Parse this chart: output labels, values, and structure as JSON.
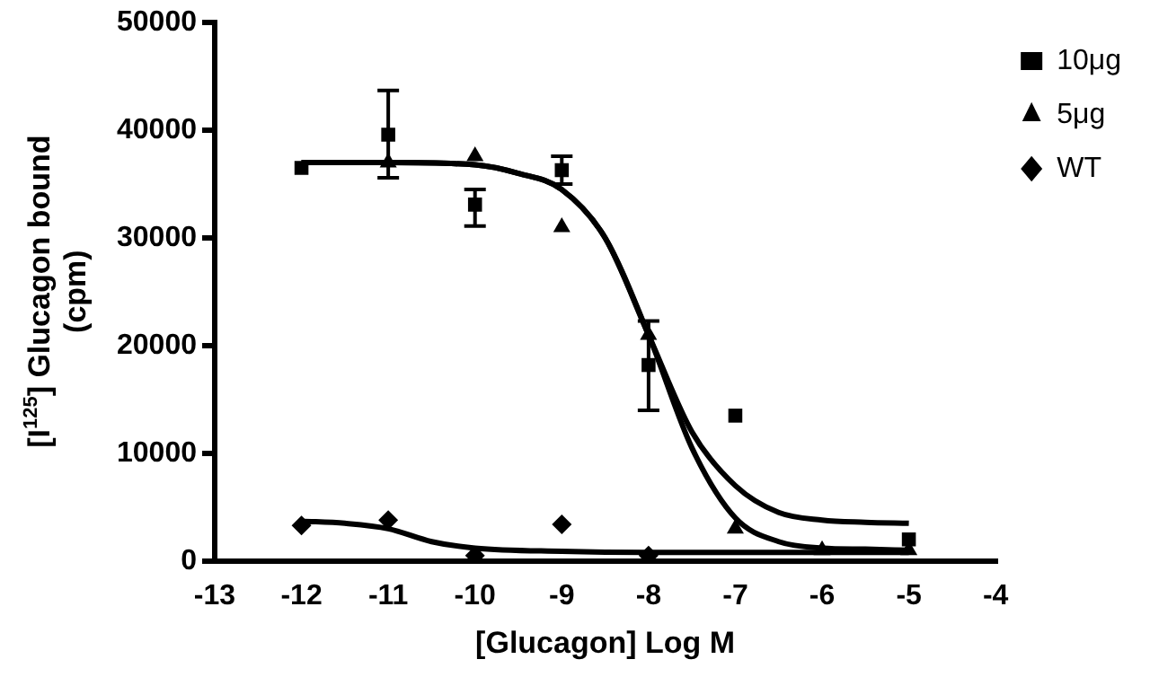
{
  "chart_data": {
    "type": "scatter",
    "xlabel": "[Glucagon] Log M",
    "ylabel": "[I$^{125}$] Glucagon bound (cpm)",
    "xlim": [
      -13,
      -4
    ],
    "xticks": [
      -13,
      -12,
      -11,
      -10,
      -9,
      -8,
      -7,
      -6,
      -5,
      -4
    ],
    "ylim": [
      0,
      50000
    ],
    "yticks": [
      0,
      10000,
      20000,
      30000,
      40000,
      50000
    ],
    "grid": false,
    "legend": "top right",
    "series": [
      {
        "name": "10μg",
        "type": "scatter",
        "marker": "square",
        "color": "#000000",
        "x": [
          -12,
          -11,
          -10,
          -9,
          -8,
          -7,
          -6,
          -5
        ],
        "values": [
          36500,
          39600,
          33100,
          36300,
          18200,
          13500,
          null,
          2000
        ],
        "errors": [
          null,
          [
            35600,
            43700
          ],
          [
            31100,
            34500
          ],
          [
            35000,
            37600
          ],
          [
            14000,
            22300
          ],
          null,
          null,
          null
        ]
      },
      {
        "name": "5μg",
        "type": "scatter",
        "marker": "triangle",
        "color": "#000000",
        "x": [
          -11,
          -10,
          -9,
          -8,
          -7,
          -6,
          -5
        ],
        "values": [
          37000,
          37600,
          31000,
          21000,
          3000,
          1000,
          1000
        ]
      },
      {
        "name": "WT",
        "type": "scatter",
        "marker": "diamond",
        "color": "#000000",
        "x": [
          -12,
          -11,
          -10,
          -9,
          -8
        ],
        "values": [
          3300,
          3800,
          500,
          3400,
          500
        ]
      },
      {
        "type": "line",
        "color": "#000000",
        "x": [
          -12,
          -11,
          -10,
          -9.5,
          -9,
          -8.5,
          -8,
          -7.5,
          -7,
          -6.5,
          -6,
          -5.5,
          -5
        ],
        "values": [
          37000,
          37000,
          36800,
          36000,
          34500,
          30000,
          21000,
          12000,
          7000,
          4500,
          3800,
          3600,
          3500
        ]
      },
      {
        "type": "line",
        "color": "#000000",
        "x": [
          -12,
          -11,
          -10,
          -9.5,
          -9,
          -8.5,
          -8,
          -7.5,
          -7,
          -6.5,
          -6,
          -5.5,
          -5
        ],
        "values": [
          37000,
          37000,
          36800,
          36000,
          34500,
          30000,
          21000,
          10500,
          4000,
          1800,
          1200,
          1100,
          1000
        ]
      },
      {
        "type": "line",
        "color": "#000000",
        "x": [
          -12,
          -11.5,
          -11,
          -10.5,
          -10,
          -9,
          -8,
          -7,
          -6,
          -5
        ],
        "values": [
          3700,
          3500,
          3000,
          1800,
          1200,
          900,
          800,
          800,
          800,
          800
        ]
      }
    ]
  }
}
